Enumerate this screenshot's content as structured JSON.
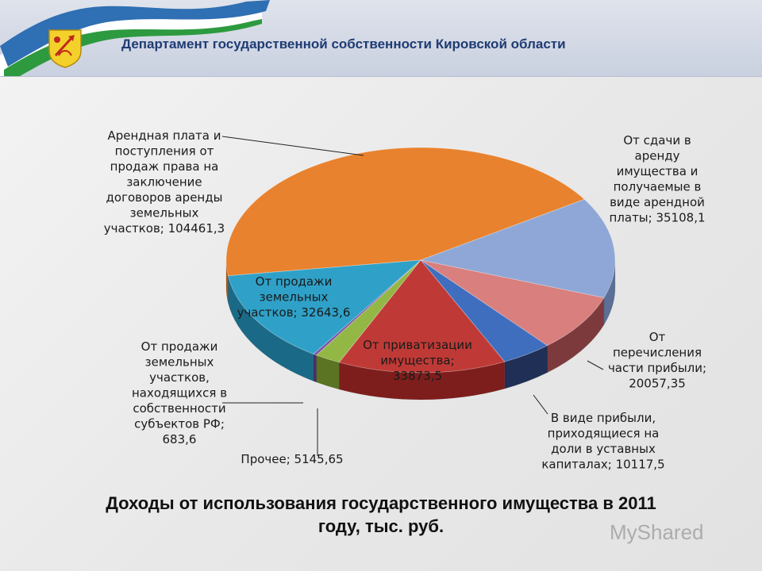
{
  "header": {
    "title": "Департамент государственной собственности Кировской области"
  },
  "caption": {
    "line1": "Доходы от использования государственного имущества в 2011",
    "line2": "году, тыс. руб."
  },
  "watermark": {
    "text": "MyShared"
  },
  "colors": {
    "header_text": "#1f3b73"
  },
  "chart_data": {
    "type": "pie",
    "title": "Доходы от использования государственного имущества в 2011 году, тыс. руб.",
    "slices": [
      {
        "label_lines": [
          "Арендная плата и",
          "поступления от",
          "продаж права на",
          "заключение",
          "договоров аренды",
          "земельных",
          "участков; 104461,3"
        ],
        "value": 104461.3,
        "color": "#e8822e",
        "side": "#a85818"
      },
      {
        "label_lines": [
          "От сдачи в",
          "аренду",
          "имущества и",
          "получаемые в",
          "виде арендной",
          "платы; 35108,1"
        ],
        "value": 35108.1,
        "color": "#8fa7d6",
        "side": "#5c6f96"
      },
      {
        "label_lines": [
          "От",
          "перечисления",
          "части прибыли;",
          "20057,35"
        ],
        "value": 20057.35,
        "color": "#d97f7e",
        "side": "#7d3a3c"
      },
      {
        "label_lines": [
          "В виде прибыли,",
          "приходящиеся на",
          "доли в уставных",
          "капиталах; 10117,5"
        ],
        "value": 10117.5,
        "color": "#3f6ebf",
        "side": "#1f2f55"
      },
      {
        "label_lines": [
          "От приватизации",
          "имущества;",
          "33873,5"
        ],
        "value": 33873.5,
        "color": "#bf3a36",
        "side": "#7e1e1c"
      },
      {
        "label_lines": [
          "Прочее; 5145,65"
        ],
        "value": 5145.65,
        "color": "#93b744",
        "side": "#5a7424"
      },
      {
        "label_lines": [
          "От продажи",
          "земельных",
          "участков,",
          "находящихся в",
          "собственности",
          "субъектов РФ;",
          "683,6"
        ],
        "value": 683.6,
        "color": "#7b52a6",
        "side": "#4b2f69"
      },
      {
        "label_lines": [
          "От продажи",
          "земельных",
          "участков; 32643,6"
        ],
        "value": 32643.6,
        "color": "#2fa1c8",
        "side": "#1a6a87"
      }
    ]
  }
}
